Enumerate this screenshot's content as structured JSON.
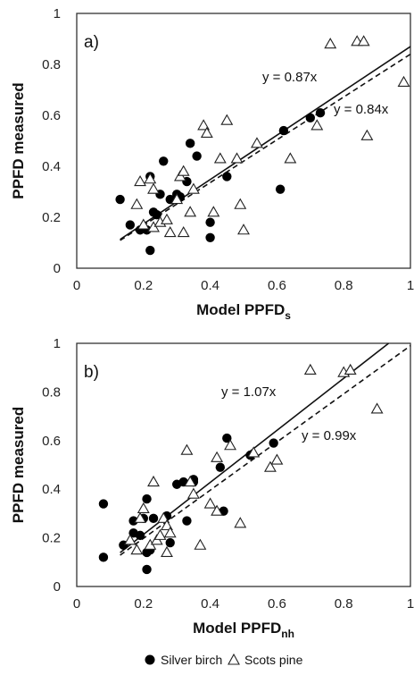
{
  "chart_data": [
    {
      "type": "scatter",
      "panel_label": "a)",
      "xlabel": "Model PPFD",
      "xlabel_sub": "s",
      "ylabel": "PPFD measured",
      "xlim": [
        0,
        1
      ],
      "ylim": [
        0,
        1
      ],
      "xticks": [
        "0",
        "0.2",
        "0.4",
        "0.6",
        "0.8",
        "1"
      ],
      "yticks": [
        "0",
        "0.2",
        "0.4",
        "0.6",
        "0.8",
        "1"
      ],
      "grid": false,
      "series": [
        {
          "name": "Silver birch",
          "marker": "filled-circle",
          "points": [
            [
              0.13,
              0.27
            ],
            [
              0.16,
              0.17
            ],
            [
              0.19,
              0.15
            ],
            [
              0.21,
              0.15
            ],
            [
              0.22,
              0.36
            ],
            [
              0.22,
              0.07
            ],
            [
              0.23,
              0.22
            ],
            [
              0.24,
              0.21
            ],
            [
              0.25,
              0.29
            ],
            [
              0.26,
              0.42
            ],
            [
              0.28,
              0.27
            ],
            [
              0.3,
              0.29
            ],
            [
              0.31,
              0.28
            ],
            [
              0.33,
              0.34
            ],
            [
              0.34,
              0.49
            ],
            [
              0.36,
              0.44
            ],
            [
              0.4,
              0.18
            ],
            [
              0.4,
              0.12
            ],
            [
              0.45,
              0.36
            ],
            [
              0.61,
              0.31
            ],
            [
              0.62,
              0.54
            ],
            [
              0.7,
              0.59
            ],
            [
              0.73,
              0.61
            ]
          ]
        },
        {
          "name": "Scots pine",
          "marker": "open-triangle",
          "points": [
            [
              0.18,
              0.25
            ],
            [
              0.19,
              0.34
            ],
            [
              0.2,
              0.17
            ],
            [
              0.22,
              0.35
            ],
            [
              0.23,
              0.16
            ],
            [
              0.23,
              0.31
            ],
            [
              0.25,
              0.18
            ],
            [
              0.27,
              0.19
            ],
            [
              0.28,
              0.14
            ],
            [
              0.3,
              0.27
            ],
            [
              0.31,
              0.36
            ],
            [
              0.32,
              0.38
            ],
            [
              0.32,
              0.14
            ],
            [
              0.34,
              0.22
            ],
            [
              0.35,
              0.31
            ],
            [
              0.38,
              0.56
            ],
            [
              0.39,
              0.53
            ],
            [
              0.41,
              0.22
            ],
            [
              0.43,
              0.43
            ],
            [
              0.45,
              0.58
            ],
            [
              0.48,
              0.43
            ],
            [
              0.49,
              0.25
            ],
            [
              0.5,
              0.15
            ],
            [
              0.54,
              0.49
            ],
            [
              0.64,
              0.43
            ],
            [
              0.72,
              0.56
            ],
            [
              0.76,
              0.88
            ],
            [
              0.84,
              0.89
            ],
            [
              0.86,
              0.89
            ],
            [
              0.87,
              0.52
            ],
            [
              0.98,
              0.73
            ]
          ]
        }
      ],
      "fits": [
        {
          "label": "y = 0.87x",
          "slope": 0.87,
          "style": "solid"
        },
        {
          "label": "y = 0.84x",
          "slope": 0.84,
          "style": "dashed"
        }
      ]
    },
    {
      "type": "scatter",
      "panel_label": "b)",
      "xlabel": "Model PPFD",
      "xlabel_sub": "nh",
      "ylabel": "PPFD measured",
      "xlim": [
        0,
        1
      ],
      "ylim": [
        0,
        1
      ],
      "xticks": [
        "0",
        "0.2",
        "0.4",
        "0.6",
        "0.8",
        "1"
      ],
      "yticks": [
        "0",
        "0.2",
        "0.4",
        "0.6",
        "0.8",
        "1"
      ],
      "grid": false,
      "series": [
        {
          "name": "Silver birch",
          "marker": "filled-circle",
          "points": [
            [
              0.08,
              0.34
            ],
            [
              0.08,
              0.12
            ],
            [
              0.14,
              0.17
            ],
            [
              0.17,
              0.27
            ],
            [
              0.17,
              0.22
            ],
            [
              0.19,
              0.21
            ],
            [
              0.2,
              0.28
            ],
            [
              0.21,
              0.36
            ],
            [
              0.21,
              0.07
            ],
            [
              0.21,
              0.14
            ],
            [
              0.22,
              0.15
            ],
            [
              0.23,
              0.28
            ],
            [
              0.27,
              0.29
            ],
            [
              0.28,
              0.18
            ],
            [
              0.3,
              0.42
            ],
            [
              0.32,
              0.43
            ],
            [
              0.33,
              0.27
            ],
            [
              0.35,
              0.43
            ],
            [
              0.35,
              0.44
            ],
            [
              0.43,
              0.49
            ],
            [
              0.44,
              0.31
            ],
            [
              0.45,
              0.61
            ],
            [
              0.52,
              0.54
            ],
            [
              0.59,
              0.59
            ]
          ]
        },
        {
          "name": "Scots pine",
          "marker": "open-triangle",
          "points": [
            [
              0.16,
              0.19
            ],
            [
              0.18,
              0.15
            ],
            [
              0.19,
              0.28
            ],
            [
              0.2,
              0.32
            ],
            [
              0.22,
              0.17
            ],
            [
              0.23,
              0.43
            ],
            [
              0.24,
              0.19
            ],
            [
              0.25,
              0.21
            ],
            [
              0.26,
              0.28
            ],
            [
              0.27,
              0.25
            ],
            [
              0.27,
              0.14
            ],
            [
              0.28,
              0.22
            ],
            [
              0.33,
              0.56
            ],
            [
              0.34,
              0.43
            ],
            [
              0.35,
              0.38
            ],
            [
              0.37,
              0.17
            ],
            [
              0.4,
              0.34
            ],
            [
              0.42,
              0.31
            ],
            [
              0.42,
              0.53
            ],
            [
              0.46,
              0.58
            ],
            [
              0.49,
              0.26
            ],
            [
              0.53,
              0.55
            ],
            [
              0.58,
              0.49
            ],
            [
              0.6,
              0.52
            ],
            [
              0.7,
              0.89
            ],
            [
              0.8,
              0.88
            ],
            [
              0.82,
              0.89
            ],
            [
              0.9,
              0.73
            ]
          ]
        }
      ],
      "fits": [
        {
          "label": "y = 1.07x",
          "slope": 1.07,
          "style": "solid"
        },
        {
          "label": "y = 0.99x",
          "slope": 0.99,
          "style": "dashed"
        }
      ]
    }
  ],
  "legend": {
    "placement": "bottom-center",
    "items": [
      {
        "label": "Silver birch",
        "marker": "filled-circle"
      },
      {
        "label": "Scots pine",
        "marker": "open-triangle"
      }
    ]
  }
}
